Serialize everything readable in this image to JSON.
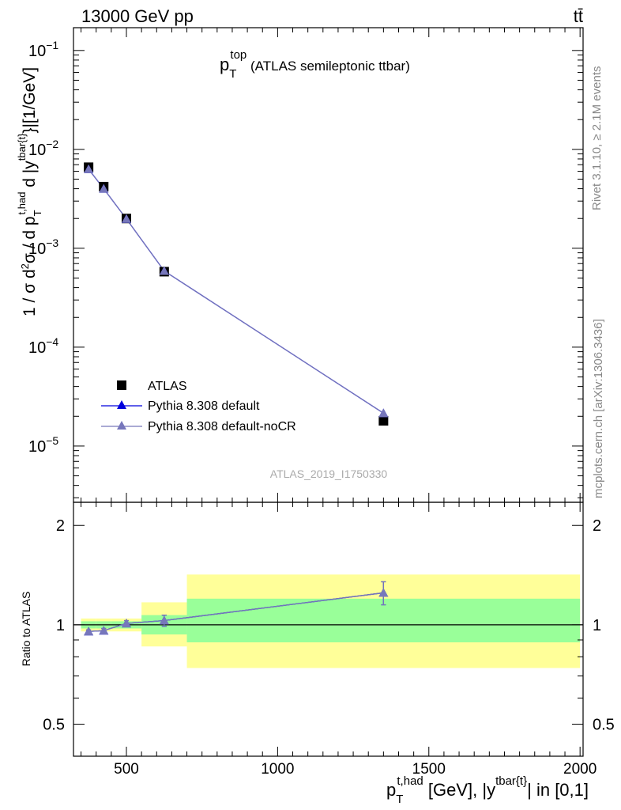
{
  "header": {
    "left": "13000 GeV pp",
    "right": "tt̄"
  },
  "side_labels": {
    "rivet": "Rivet 3.1.10, ≥ 2.1M events",
    "mcplots": "mcplots.cern.ch [arXiv:1306.3436]"
  },
  "chart_data": [
    {
      "type": "scatter",
      "panel": "main",
      "title": {
        "p": "p",
        "sub": "T",
        "sup": "top",
        "rest": " (ATLAS semileptonic ttbar)"
      },
      "analysis_id": "ATLAS_2019_I1750330",
      "ylabel": "1 / σ d²σ / d p_T^{t,had} d |y^{tbar{t}}| [1/GeV]",
      "yscale": "log",
      "xlim": [
        325,
        2010
      ],
      "ylim": [
        2.7e-06,
        0.17
      ],
      "y_ticks": [
        {
          "value": 0.1,
          "mant": "10",
          "exp": "−1"
        },
        {
          "value": 0.01,
          "mant": "10",
          "exp": "−2"
        },
        {
          "value": 0.001,
          "mant": "10",
          "exp": "−3"
        },
        {
          "value": 0.0001,
          "mant": "10",
          "exp": "−4"
        },
        {
          "value": 1e-05,
          "mant": "10",
          "exp": "−5"
        }
      ],
      "legend_position": "lower-left",
      "series": [
        {
          "name": "ATLAS",
          "marker": "square",
          "color": "#000000",
          "x": [
            375,
            425,
            500,
            625,
            1350
          ],
          "y": [
            0.0066,
            0.0042,
            0.002,
            0.00058,
            1.8e-05
          ]
        },
        {
          "name": "Pythia 8.308 default",
          "marker": "triangle",
          "color": "#0000dd",
          "x": [
            375,
            425,
            500,
            625,
            1350
          ],
          "y": [
            0.0063,
            0.004,
            0.00198,
            0.00059,
            2.15e-05
          ]
        },
        {
          "name": "Pythia 8.308 default-noCR",
          "marker": "triangle",
          "color": "#7777bb",
          "x": [
            375,
            425,
            500,
            625,
            1350
          ],
          "y": [
            0.0063,
            0.004,
            0.00198,
            0.00059,
            2.15e-05
          ]
        }
      ]
    },
    {
      "type": "scatter",
      "panel": "ratio",
      "ylabel": "Ratio to ATLAS",
      "xlabel": "p_T^{t,had} [GeV], |y^{tbar{t}}| in [0,1]",
      "xlim": [
        325,
        2010
      ],
      "ylim": [
        0.4,
        2.35
      ],
      "x_ticks": [
        500,
        1000,
        1500,
        2000
      ],
      "y_ticks": [
        0.5,
        1,
        2
      ],
      "reference": 1,
      "bands": [
        {
          "x0": 350,
          "x1": 400,
          "inner": [
            0.975,
            1.025
          ],
          "outer": [
            0.955,
            1.045
          ]
        },
        {
          "x0": 400,
          "x1": 450,
          "inner": [
            0.975,
            1.025
          ],
          "outer": [
            0.955,
            1.045
          ]
        },
        {
          "x0": 450,
          "x1": 550,
          "inner": [
            0.975,
            1.025
          ],
          "outer": [
            0.955,
            1.045
          ]
        },
        {
          "x0": 550,
          "x1": 700,
          "inner": [
            0.935,
            1.07
          ],
          "outer": [
            0.86,
            1.17
          ]
        },
        {
          "x0": 700,
          "x1": 2000,
          "inner": [
            0.885,
            1.2
          ],
          "outer": [
            0.74,
            1.42
          ]
        }
      ],
      "band_colors": {
        "inner": "#99ff99",
        "outer": "#ffff99"
      },
      "series": [
        {
          "name": "Pythia 8.308 default",
          "color": "#0000dd",
          "x": [
            375,
            425,
            500,
            625,
            1350
          ],
          "y": [
            0.955,
            0.96,
            1.01,
            1.03,
            1.25
          ],
          "err": [
            0.01,
            0.015,
            0.02,
            0.04,
            0.1
          ]
        },
        {
          "name": "Pythia 8.308 default-noCR",
          "color": "#7777bb",
          "x": [
            375,
            425,
            500,
            625,
            1350
          ],
          "y": [
            0.955,
            0.96,
            1.01,
            1.03,
            1.25
          ],
          "err": [
            0.01,
            0.015,
            0.02,
            0.04,
            0.1
          ]
        }
      ]
    }
  ]
}
